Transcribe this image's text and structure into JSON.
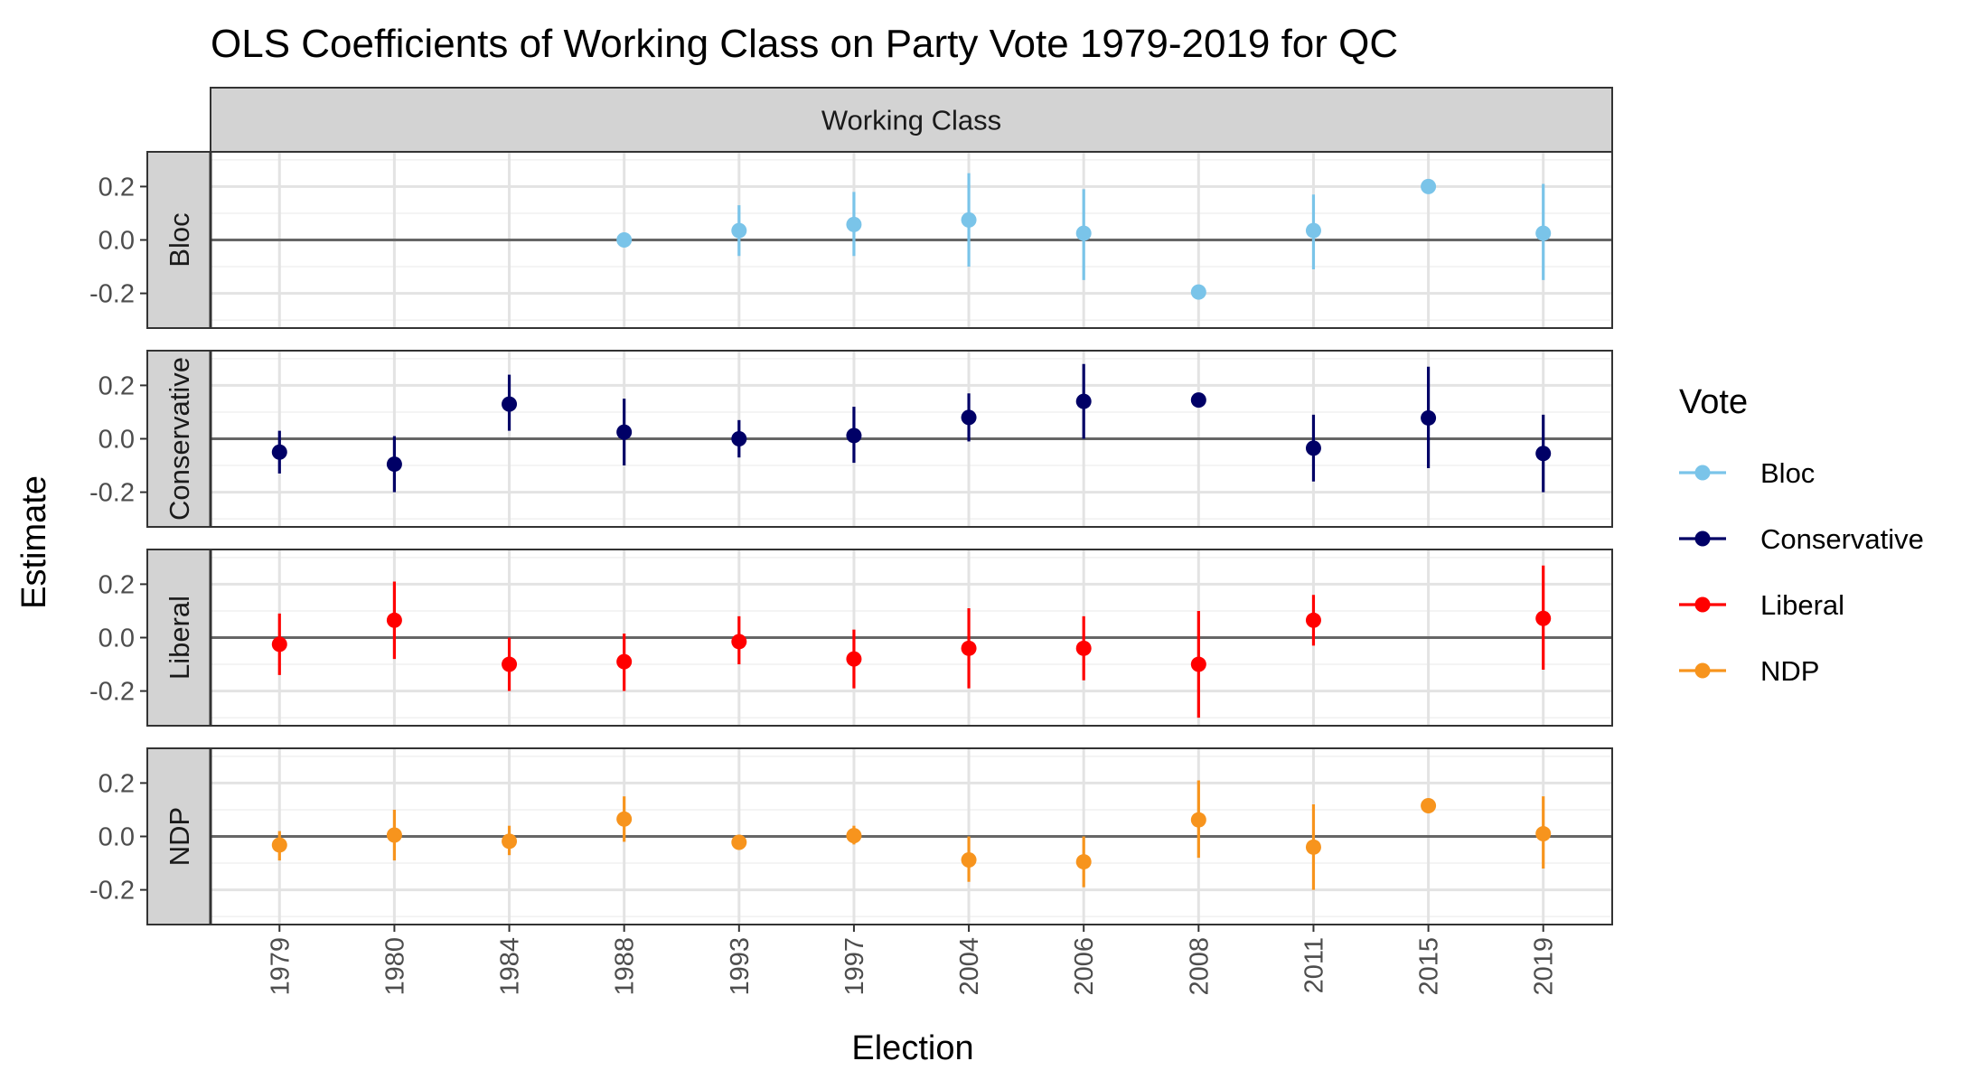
{
  "chart_data": {
    "type": "scatter",
    "title": "OLS Coefficients of Working Class on Party Vote 1979-2019 for QC",
    "facet_label": "Working Class",
    "xlabel": "Election",
    "ylabel": "Estimate",
    "categories": [
      "1979",
      "1980",
      "1984",
      "1988",
      "1993",
      "1997",
      "2004",
      "2006",
      "2008",
      "2011",
      "2015",
      "2019"
    ],
    "ylim": [
      -0.33,
      0.33
    ],
    "yticks": [
      -0.2,
      0.0,
      0.2
    ],
    "ytick_labels": [
      "-0.2",
      "0.0",
      "0.2"
    ],
    "reference_line": 0,
    "grid": true,
    "legend": {
      "title": "Vote",
      "placement": "right",
      "entries": [
        "Bloc",
        "Conservative",
        "Liberal",
        "NDP"
      ]
    },
    "series": [
      {
        "name": "Bloc",
        "color": "#7AC4E9",
        "points": [
          {
            "x": "1988",
            "y": 0.0,
            "lo": null,
            "hi": null
          },
          {
            "x": "1993",
            "y": 0.035,
            "lo": -0.06,
            "hi": 0.13
          },
          {
            "x": "1997",
            "y": 0.058,
            "lo": -0.06,
            "hi": 0.18
          },
          {
            "x": "2004",
            "y": 0.075,
            "lo": -0.1,
            "hi": 0.25
          },
          {
            "x": "2006",
            "y": 0.025,
            "lo": -0.15,
            "hi": 0.19
          },
          {
            "x": "2008",
            "y": -0.195,
            "lo": null,
            "hi": null
          },
          {
            "x": "2011",
            "y": 0.035,
            "lo": -0.11,
            "hi": 0.17
          },
          {
            "x": "2015",
            "y": 0.2,
            "lo": null,
            "hi": null
          },
          {
            "x": "2019",
            "y": 0.025,
            "lo": -0.15,
            "hi": 0.21
          }
        ]
      },
      {
        "name": "Conservative",
        "color": "#000066",
        "points": [
          {
            "x": "1979",
            "y": -0.05,
            "lo": -0.13,
            "hi": 0.03
          },
          {
            "x": "1980",
            "y": -0.095,
            "lo": -0.2,
            "hi": 0.01
          },
          {
            "x": "1984",
            "y": 0.13,
            "lo": 0.03,
            "hi": 0.24
          },
          {
            "x": "1988",
            "y": 0.025,
            "lo": -0.1,
            "hi": 0.15
          },
          {
            "x": "1993",
            "y": 0.0,
            "lo": -0.07,
            "hi": 0.07
          },
          {
            "x": "1997",
            "y": 0.012,
            "lo": -0.09,
            "hi": 0.12
          },
          {
            "x": "2004",
            "y": 0.08,
            "lo": -0.01,
            "hi": 0.17
          },
          {
            "x": "2006",
            "y": 0.14,
            "lo": 0.0,
            "hi": 0.28
          },
          {
            "x": "2008",
            "y": 0.145,
            "lo": null,
            "hi": null
          },
          {
            "x": "2011",
            "y": -0.035,
            "lo": -0.16,
            "hi": 0.09
          },
          {
            "x": "2015",
            "y": 0.078,
            "lo": -0.11,
            "hi": 0.27
          },
          {
            "x": "2019",
            "y": -0.055,
            "lo": -0.2,
            "hi": 0.09
          }
        ]
      },
      {
        "name": "Liberal",
        "color": "#FF0000",
        "points": [
          {
            "x": "1979",
            "y": -0.025,
            "lo": -0.14,
            "hi": 0.09
          },
          {
            "x": "1980",
            "y": 0.065,
            "lo": -0.08,
            "hi": 0.21
          },
          {
            "x": "1984",
            "y": -0.1,
            "lo": -0.2,
            "hi": 0.0
          },
          {
            "x": "1988",
            "y": -0.09,
            "lo": -0.2,
            "hi": 0.015
          },
          {
            "x": "1993",
            "y": -0.015,
            "lo": -0.1,
            "hi": 0.08
          },
          {
            "x": "1997",
            "y": -0.08,
            "lo": -0.19,
            "hi": 0.03
          },
          {
            "x": "2004",
            "y": -0.04,
            "lo": -0.19,
            "hi": 0.11
          },
          {
            "x": "2006",
            "y": -0.04,
            "lo": -0.16,
            "hi": 0.08
          },
          {
            "x": "2008",
            "y": -0.1,
            "lo": -0.3,
            "hi": 0.1
          },
          {
            "x": "2011",
            "y": 0.065,
            "lo": -0.03,
            "hi": 0.16
          },
          {
            "x": "2019",
            "y": 0.072,
            "lo": -0.12,
            "hi": 0.27
          }
        ]
      },
      {
        "name": "NDP",
        "color": "#F7941D",
        "points": [
          {
            "x": "1979",
            "y": -0.032,
            "lo": -0.09,
            "hi": 0.02
          },
          {
            "x": "1980",
            "y": 0.005,
            "lo": -0.09,
            "hi": 0.1
          },
          {
            "x": "1984",
            "y": -0.018,
            "lo": -0.07,
            "hi": 0.04
          },
          {
            "x": "1988",
            "y": 0.065,
            "lo": -0.02,
            "hi": 0.15
          },
          {
            "x": "1993",
            "y": -0.022,
            "lo": null,
            "hi": null
          },
          {
            "x": "1997",
            "y": 0.003,
            "lo": -0.03,
            "hi": 0.04
          },
          {
            "x": "2004",
            "y": -0.088,
            "lo": -0.17,
            "hi": 0.0
          },
          {
            "x": "2006",
            "y": -0.095,
            "lo": -0.19,
            "hi": 0.0
          },
          {
            "x": "2008",
            "y": 0.062,
            "lo": -0.08,
            "hi": 0.21
          },
          {
            "x": "2011",
            "y": -0.04,
            "lo": -0.2,
            "hi": 0.12
          },
          {
            "x": "2015",
            "y": 0.115,
            "lo": null,
            "hi": null
          },
          {
            "x": "2019",
            "y": 0.01,
            "lo": -0.12,
            "hi": 0.15
          }
        ]
      }
    ]
  }
}
